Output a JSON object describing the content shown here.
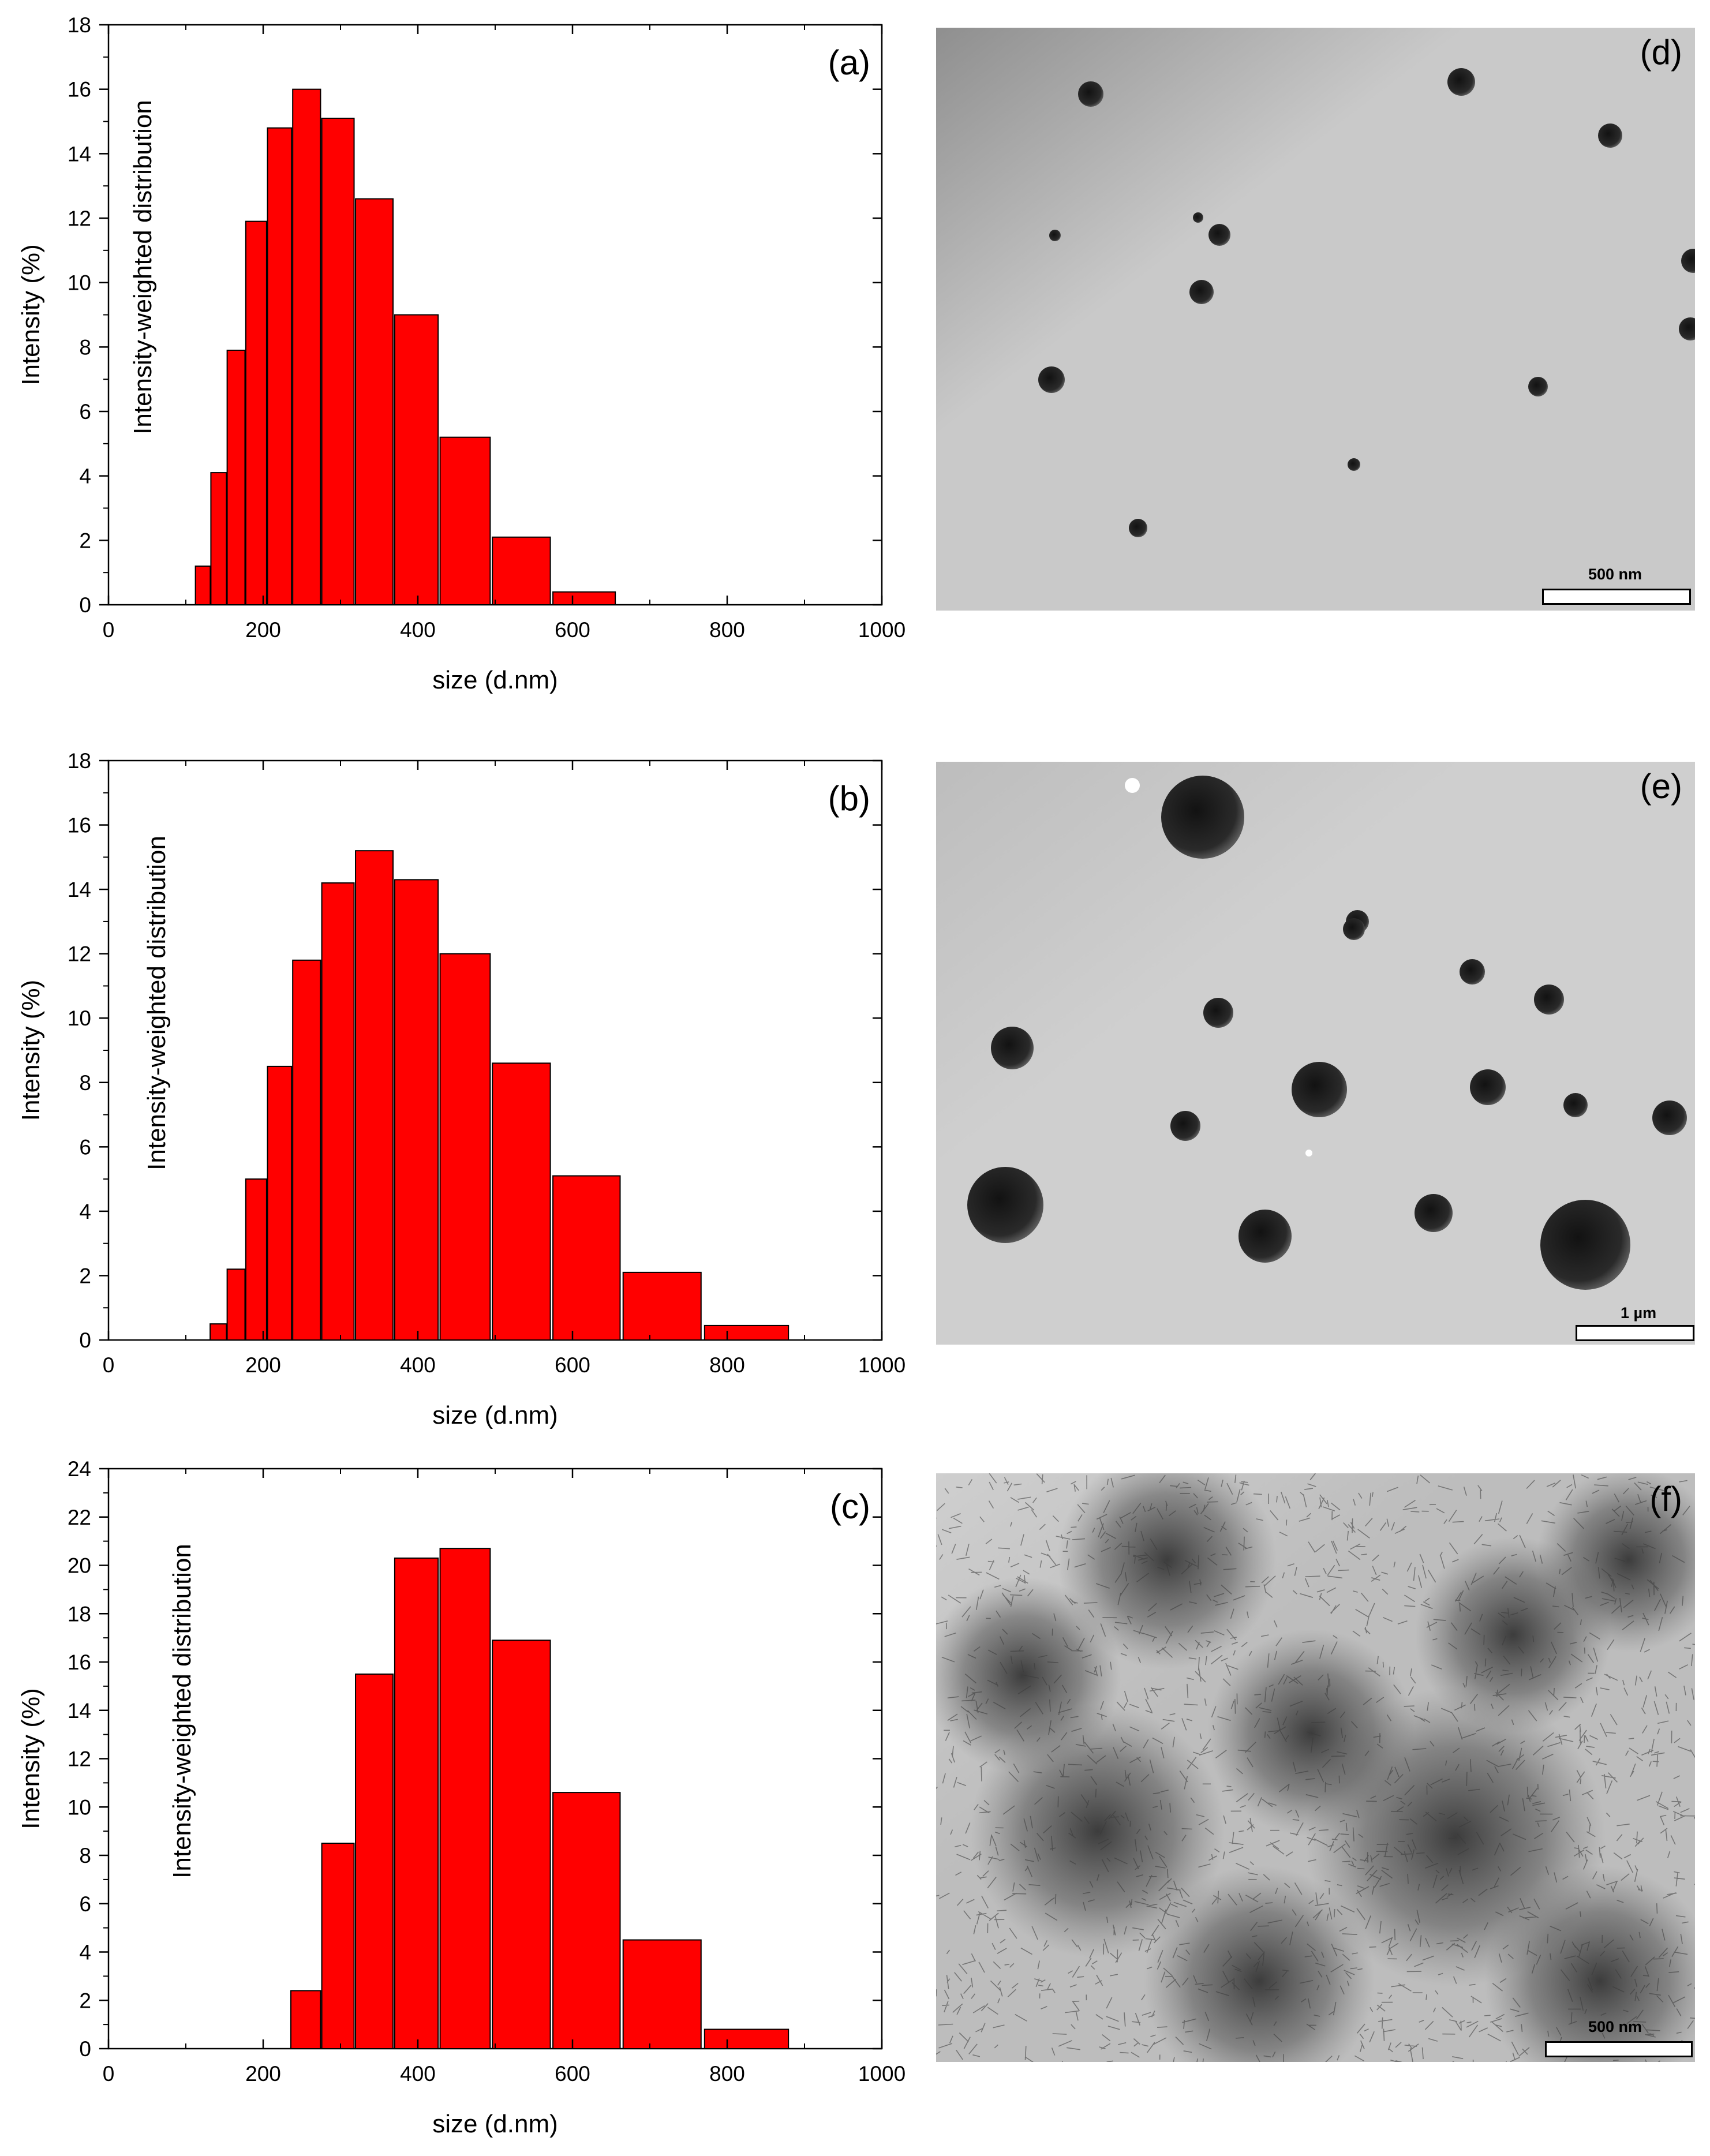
{
  "chart_data": [
    {
      "type": "bar",
      "panel_label": "(a)",
      "xlabel": "size (d.nm)",
      "ylabel": "Intensity (%)",
      "inner_label": "Intensity-weighted distribution",
      "xlim": [
        0,
        1000
      ],
      "ylim": [
        0,
        18
      ],
      "xticks": [
        0,
        200,
        400,
        600,
        800,
        1000
      ],
      "yticks": [
        0,
        2,
        4,
        6,
        8,
        10,
        12,
        14,
        16,
        18
      ],
      "x": [
        122,
        142,
        164,
        190,
        220,
        255,
        295,
        342,
        396,
        459,
        531,
        615
      ],
      "values": [
        1.2,
        4.1,
        7.9,
        11.9,
        14.8,
        16.0,
        15.1,
        12.6,
        9.0,
        5.2,
        2.1,
        0.4
      ]
    },
    {
      "type": "bar",
      "panel_label": "(b)",
      "xlabel": "size (d.nm)",
      "ylabel": "Intensity (%)",
      "inner_label": "Intensity-weighted distribution",
      "xlim": [
        0,
        1000
      ],
      "ylim": [
        0,
        18
      ],
      "xticks": [
        0,
        200,
        400,
        600,
        800,
        1000
      ],
      "yticks": [
        0,
        2,
        4,
        6,
        8,
        10,
        12,
        14,
        16,
        18
      ],
      "x": [
        142,
        164,
        190,
        220,
        255,
        295,
        342,
        396,
        459,
        531,
        615,
        712,
        825
      ],
      "values": [
        0.5,
        2.2,
        5.0,
        8.5,
        11.8,
        14.2,
        15.2,
        14.3,
        12.0,
        8.6,
        5.1,
        2.1,
        0.45
      ]
    },
    {
      "type": "bar",
      "panel_label": "(c)",
      "xlabel": "size (d.nm)",
      "ylabel": "Intensity (%)",
      "inner_label": "Intensity-weighted distribution",
      "xlim": [
        0,
        1000
      ],
      "ylim": [
        0,
        24
      ],
      "xticks": [
        0,
        200,
        400,
        600,
        800,
        1000
      ],
      "yticks": [
        0,
        2,
        4,
        6,
        8,
        10,
        12,
        14,
        16,
        18,
        20,
        22,
        24
      ],
      "x": [
        255,
        295,
        342,
        396,
        459,
        531,
        615,
        712,
        825
      ],
      "values": [
        2.4,
        8.5,
        15.5,
        20.3,
        20.7,
        16.9,
        10.6,
        4.5,
        0.8
      ]
    }
  ],
  "tem_images": [
    {
      "panel_label": "(d)",
      "scale_label": "500 nm",
      "style": "sparse-small"
    },
    {
      "panel_label": "(e)",
      "scale_label": "1 µm",
      "style": "sparse-mixed"
    },
    {
      "panel_label": "(f)",
      "scale_label": "500 nm",
      "style": "dense-fibrous"
    }
  ],
  "colors": {
    "bar_fill": "#ff0000",
    "bar_stroke": "#000000"
  }
}
